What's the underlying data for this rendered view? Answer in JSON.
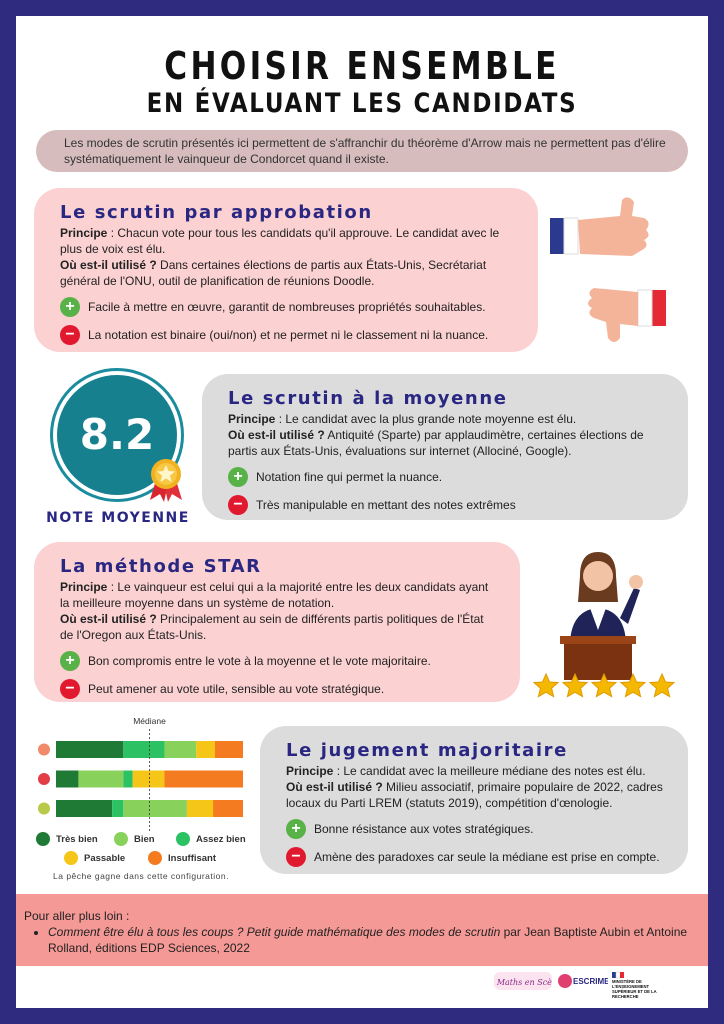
{
  "title": {
    "line1": "CHOISIR ENSEMBLE",
    "line2": "EN ÉVALUANT LES CANDIDATS"
  },
  "intro": "Les modes de scrutin présentés ici permettent de s'affranchir du théorème d'Arrow mais ne permettent pas d'élire systématiquement le vainqueur de Condorcet quand il existe.",
  "labels": {
    "principe": "Principe",
    "ou": "Où est-il utilisé ?"
  },
  "sections": [
    {
      "title": "Le scrutin par approbation",
      "principe": " : Chacun vote pour tous les candidats qu'il approuve. Le candidat avec le plus de voix est élu.",
      "ou": " Dans certaines élections de partis aux États-Unis, Secrétariat général de l'ONU, outil de planification de réunions Doodle.",
      "pro": "Facile à mettre en œuvre, garantit de nombreuses propriétés souhaitables.",
      "con": "La notation est binaire (oui/non) et ne permet ni le classement ni la nuance."
    },
    {
      "title": "Le scrutin à la moyenne",
      "principe": " : Le candidat avec la plus grande note moyenne est élu.",
      "ou": " Antiquité (Sparte) par applaudimètre, certaines élections de partis aux États-Unis, évaluations sur internet (Allociné, Google).",
      "pro": "Notation fine qui permet la nuance.",
      "con": "Très manipulable en mettant des notes extrêmes"
    },
    {
      "title": "La méthode STAR",
      "principe": " : Le vainqueur est celui qui a la majorité entre les deux candidats ayant la meilleure moyenne dans un système de notation.",
      "ou": " Principalement au sein de différents partis politiques de l'État de l'Oregon aux États-Unis.",
      "pro": "Bon compromis entre le vote à la moyenne et le vote majoritaire.",
      "con": "Peut amener au vote utile, sensible au vote stratégique."
    },
    {
      "title": "Le jugement majoritaire",
      "principe": " : Le candidat avec la meilleure médiane des notes est élu.",
      "ou": " Milieu associatif, primaire populaire de 2022, cadres locaux du Parti LREM (statuts 2019), compétition d'œnologie.",
      "pro": "Bonne résistance aux votes stratégiques.",
      "con": "Amène des paradoxes car seule la médiane est prise en compte."
    }
  ],
  "badge": {
    "value": "8.2",
    "label": "NOTE MOYENNE"
  },
  "chart_data": {
    "type": "bar",
    "stacked": true,
    "orientation": "horizontal",
    "annotation": "Médiane",
    "categories": [
      "pêche",
      "fraise",
      "poire"
    ],
    "category_icons": [
      "peach-icon",
      "strawberry-icon",
      "pear-icon"
    ],
    "series": [
      {
        "name": "Très bien",
        "color": "#1f7a35",
        "values": [
          36,
          12,
          30
        ]
      },
      {
        "name": "Bien",
        "color": "#88d25c",
        "values": [
          0,
          24,
          0
        ]
      },
      {
        "name": "Assez bien",
        "color": "#2cc264",
        "values": [
          22,
          5,
          6
        ]
      },
      {
        "name": "Bien",
        "color": "#88d25c",
        "values": [
          17,
          0,
          34
        ]
      },
      {
        "name": "Passable",
        "color": "#f5c518",
        "values": [
          10,
          17,
          14
        ]
      },
      {
        "name": "Insuffisant",
        "color": "#f47b20",
        "values": [
          15,
          42,
          16
        ]
      }
    ],
    "median_position": 50,
    "xlim": [
      0,
      100
    ]
  },
  "legend": [
    {
      "label": "Très bien",
      "color": "#1f7a35"
    },
    {
      "label": "Bien",
      "color": "#88d25c"
    },
    {
      "label": "Assez bien",
      "color": "#2cc264"
    },
    {
      "label": "Passable",
      "color": "#f5c518"
    },
    {
      "label": "Insuffisant",
      "color": "#f47b20"
    }
  ],
  "chart_caption": "La pêche gagne dans cette configuration.",
  "footer": {
    "heading": "Pour aller plus loin :",
    "book_title": "Comment être élu à tous les coups ? Petit guide mathématique des modes de scrutin",
    "book_rest": " par Jean Baptiste Aubin et Antoine Rolland, éditions EDP Sciences, 2022"
  },
  "logos": {
    "logo1": "La Maths en Scène",
    "logo2": "ESCRIME",
    "logo3": "MINISTÈRE DE L'ENSEIGNEMENT SUPÉRIEUR ET DE LA RECHERCHE"
  }
}
